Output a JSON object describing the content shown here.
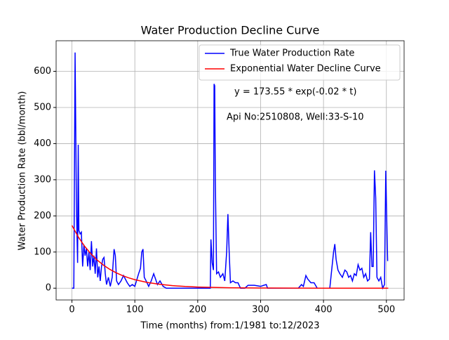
{
  "chart_data": {
    "type": "line",
    "title": "Water Production Decline Curve",
    "xlabel": "Time (months) from:1/1981 to:12/2023",
    "ylabel": "Water Production Rate (bbl/month)",
    "annotations": [
      "y = 173.55 * exp(-0.02 * t)",
      "Api No:2510808, Well:33-S-10"
    ],
    "xlim": [
      -25.15,
      528.15
    ],
    "xticks": [
      0,
      100,
      200,
      300,
      400,
      500
    ],
    "ylim": [
      -32.6,
      684.6
    ],
    "yticks": [
      0,
      100,
      200,
      300,
      400,
      500,
      600
    ],
    "grid": true,
    "legend": "upper right",
    "series": [
      {
        "name": "True Water Production Rate",
        "color": "#0000ff",
        "x": [
          0,
          3,
          5,
          7,
          8,
          9,
          10,
          11,
          13,
          15,
          17,
          19,
          21,
          23,
          25,
          27,
          29,
          31,
          33,
          35,
          37,
          39,
          41,
          43,
          45,
          47,
          49,
          51,
          53,
          55,
          58,
          61,
          64,
          67,
          69,
          71,
          74,
          78,
          82,
          85,
          88,
          92,
          96,
          100,
          106,
          109,
          111,
          113,
          115,
          118,
          122,
          126,
          130,
          133,
          136,
          140,
          145,
          150,
          160,
          180,
          200,
          210,
          220,
          221,
          223,
          225,
          226,
          227,
          228,
          230,
          233,
          236,
          240,
          243,
          246,
          248,
          250,
          252,
          256,
          260,
          264,
          268,
          275,
          280,
          290,
          300,
          305,
          309,
          311,
          330,
          355,
          360,
          365,
          368,
          372,
          375,
          380,
          385,
          390,
          400,
          410,
          413,
          416,
          418,
          420,
          423,
          426,
          430,
          434,
          437,
          440,
          443,
          446,
          449,
          452,
          455,
          458,
          461,
          464,
          467,
          470,
          473,
          475,
          477,
          479,
          481,
          483,
          485,
          488,
          491,
          494,
          497,
          499,
          501,
          502
        ],
        "values": [
          0,
          0,
          652,
          250,
          150,
          70,
          397,
          160,
          150,
          155,
          60,
          120,
          90,
          110,
          60,
          100,
          50,
          130,
          60,
          90,
          40,
          110,
          30,
          60,
          20,
          60,
          80,
          85,
          40,
          10,
          30,
          5,
          30,
          108,
          90,
          20,
          10,
          20,
          35,
          25,
          15,
          5,
          10,
          5,
          40,
          55,
          100,
          108,
          30,
          20,
          5,
          20,
          40,
          25,
          10,
          20,
          5,
          0,
          0,
          0,
          0,
          0,
          0,
          135,
          70,
          50,
          565,
          560,
          300,
          40,
          45,
          30,
          40,
          20,
          100,
          205,
          100,
          15,
          20,
          15,
          15,
          0,
          0,
          8,
          8,
          5,
          8,
          10,
          0,
          0,
          0,
          0,
          10,
          5,
          35,
          25,
          15,
          15,
          0,
          0,
          0,
          50,
          100,
          122,
          80,
          50,
          40,
          30,
          50,
          45,
          30,
          35,
          20,
          40,
          35,
          65,
          50,
          55,
          30,
          40,
          20,
          25,
          155,
          60,
          60,
          326,
          250,
          30,
          20,
          30,
          0,
          10,
          325,
          150,
          75
        ]
      },
      {
        "name": "Exponential Water Decline Curve",
        "color": "#ff0000",
        "x": [
          0,
          10,
          20,
          30,
          40,
          50,
          60,
          70,
          80,
          90,
          100,
          120,
          140,
          160,
          180,
          200,
          250,
          300,
          350,
          400,
          450,
          503
        ],
        "values": [
          173.55,
          142.09,
          116.33,
          95.25,
          77.98,
          63.85,
          52.27,
          42.8,
          35.04,
          28.69,
          23.49,
          15.74,
          10.55,
          7.07,
          4.74,
          3.18,
          1.17,
          0.43,
          0.16,
          0.06,
          0.02,
          0.01
        ]
      }
    ]
  }
}
